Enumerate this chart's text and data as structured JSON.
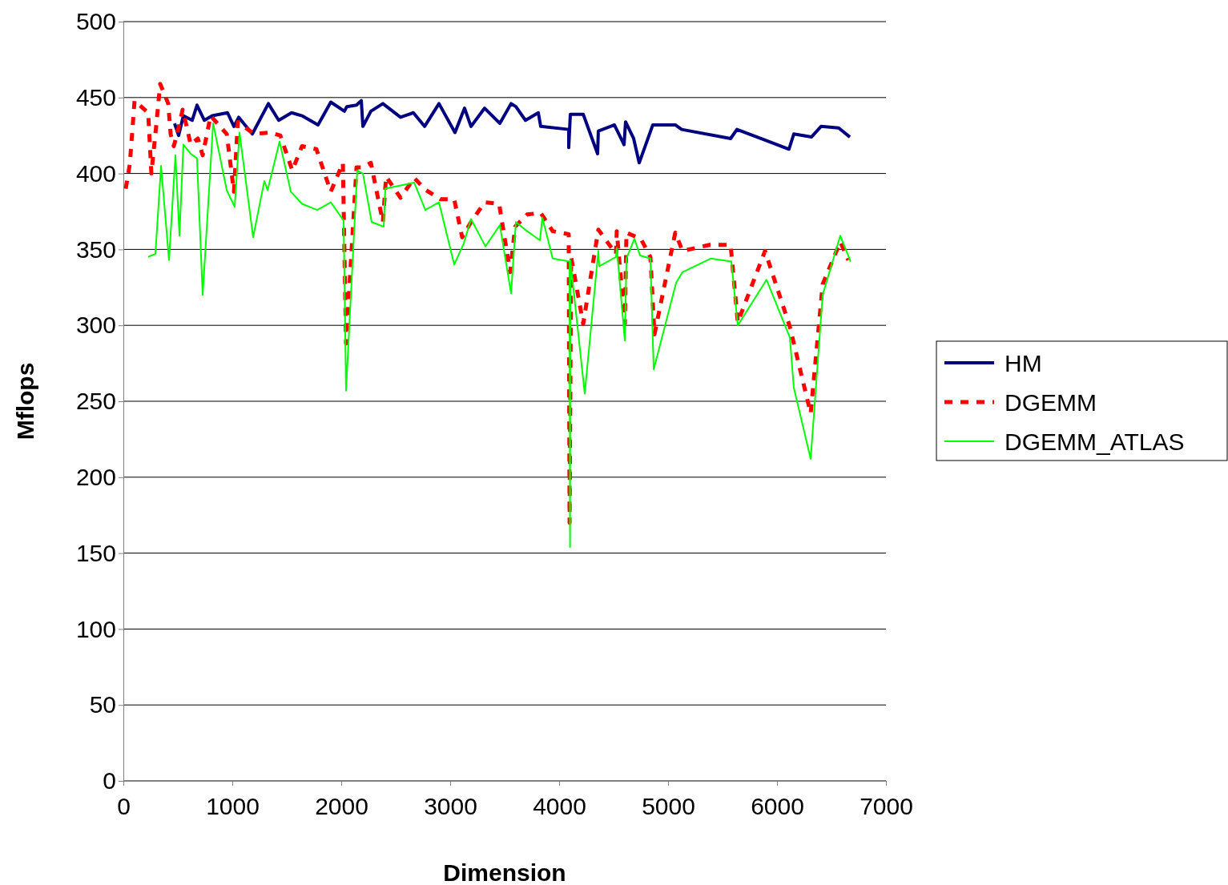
{
  "chart_data": {
    "type": "line",
    "xlabel": "Dimension",
    "ylabel": "Mflops",
    "xlim": [
      0,
      7000
    ],
    "xticks": [
      0,
      1000,
      2000,
      3000,
      4000,
      5000,
      6000,
      7000
    ],
    "ylim": [
      0,
      500
    ],
    "yticks": [
      0,
      50,
      100,
      150,
      200,
      250,
      300,
      350,
      400,
      450,
      500
    ],
    "grid": "y",
    "legend": "right",
    "marker": "none",
    "series": [
      {
        "name": "HM",
        "color": "#000080",
        "line_style": "solid",
        "x": [
          470,
          507,
          551,
          632,
          676,
          743,
          816,
          956,
          1015,
          1059,
          1184,
          1331,
          1426,
          1544,
          1640,
          1787,
          1904,
          2029,
          2051,
          2140,
          2184,
          2199,
          2272,
          2382,
          2544,
          2662,
          2765,
          2897,
          3044,
          3132,
          3191,
          3316,
          3456,
          3559,
          3603,
          3691,
          3809,
          3831,
          4088,
          4088,
          4103,
          4221,
          4353,
          4360,
          4507,
          4596,
          4610,
          4684,
          4735,
          4860,
          5066,
          5125,
          5574,
          5632,
          5890,
          6110,
          6154,
          6316,
          6404,
          6566,
          6669
        ],
        "values": [
          433,
          425,
          438,
          435,
          445,
          435,
          438,
          440,
          431,
          437,
          426,
          446,
          435,
          440,
          438,
          432,
          447,
          441,
          444,
          445,
          448,
          431,
          441,
          446,
          437,
          440,
          431,
          446,
          427,
          443,
          431,
          443,
          433,
          446,
          444,
          435,
          440,
          431,
          429,
          417,
          439,
          439,
          413,
          428,
          432,
          419,
          434,
          423,
          407,
          432,
          432,
          429,
          423,
          429,
          422,
          416,
          426,
          424,
          431,
          430,
          424
        ]
      },
      {
        "name": "DGEMM",
        "color": "#ff0000",
        "line_style": "dashed",
        "x": [
          22,
          59,
          103,
          132,
          228,
          257,
          301,
          338,
          412,
          434,
          463,
          500,
          544,
          581,
          618,
          684,
          728,
          801,
          949,
          1015,
          1051,
          1198,
          1346,
          1441,
          1551,
          1640,
          1772,
          1904,
          2015,
          2044,
          2140,
          2191,
          2272,
          2382,
          2412,
          2544,
          2669,
          2779,
          2912,
          3037,
          3110,
          3191,
          3316,
          3449,
          3551,
          3596,
          3706,
          3831,
          3941,
          4088,
          4096,
          4110,
          4221,
          4360,
          4522,
          4529,
          4603,
          4618,
          4750,
          4838,
          4875,
          5066,
          5132,
          5382,
          5574,
          5640,
          5890,
          6118,
          6309,
          6419,
          6581,
          6654
        ],
        "values": [
          390,
          406,
          448,
          446,
          440,
          400,
          431,
          459,
          446,
          426,
          418,
          428,
          442,
          431,
          419,
          423,
          412,
          438,
          426,
          388,
          434,
          426,
          427,
          425,
          402,
          418,
          416,
          388,
          407,
          288,
          404,
          404,
          407,
          368,
          398,
          384,
          397,
          389,
          383,
          383,
          358,
          368,
          381,
          380,
          335,
          365,
          373,
          374,
          362,
          360,
          170,
          345,
          301,
          363,
          347,
          362,
          301,
          361,
          357,
          345,
          294,
          361,
          349,
          353,
          353,
          302,
          349,
          299,
          242,
          327,
          355,
          343
        ]
      },
      {
        "name": "DGEMM_ATLAS",
        "color": "#00ff00",
        "line_style": "solid",
        "x": [
          228,
          257,
          294,
          346,
          419,
          478,
          515,
          551,
          618,
          676,
          728,
          824,
          949,
          1022,
          1066,
          1191,
          1294,
          1324,
          1434,
          1537,
          1640,
          1779,
          1904,
          2022,
          2044,
          2147,
          2199,
          2279,
          2390,
          2404,
          2669,
          2772,
          2897,
          3037,
          3125,
          3191,
          3324,
          3456,
          3559,
          3603,
          3706,
          3824,
          3846,
          3941,
          4096,
          4100,
          4103,
          4235,
          4360,
          4368,
          4522,
          4529,
          4603,
          4618,
          4691,
          4743,
          4838,
          4868,
          5074,
          5132,
          5390,
          5581,
          5640,
          5904,
          6118,
          6154,
          6309,
          6419,
          6581,
          6676
        ],
        "values": [
          345,
          346,
          347,
          405,
          343,
          412,
          359,
          419,
          413,
          410,
          320,
          433,
          389,
          378,
          427,
          358,
          395,
          389,
          421,
          388,
          380,
          376,
          381,
          369,
          257,
          402,
          400,
          368,
          365,
          390,
          394,
          376,
          381,
          340,
          354,
          370,
          352,
          366,
          321,
          368,
          362,
          356,
          371,
          344,
          342,
          154,
          343,
          255,
          349,
          339,
          345,
          351,
          290,
          344,
          357,
          346,
          344,
          271,
          328,
          335,
          344,
          342,
          300,
          330,
          292,
          259,
          212,
          320,
          359,
          342
        ]
      }
    ]
  }
}
